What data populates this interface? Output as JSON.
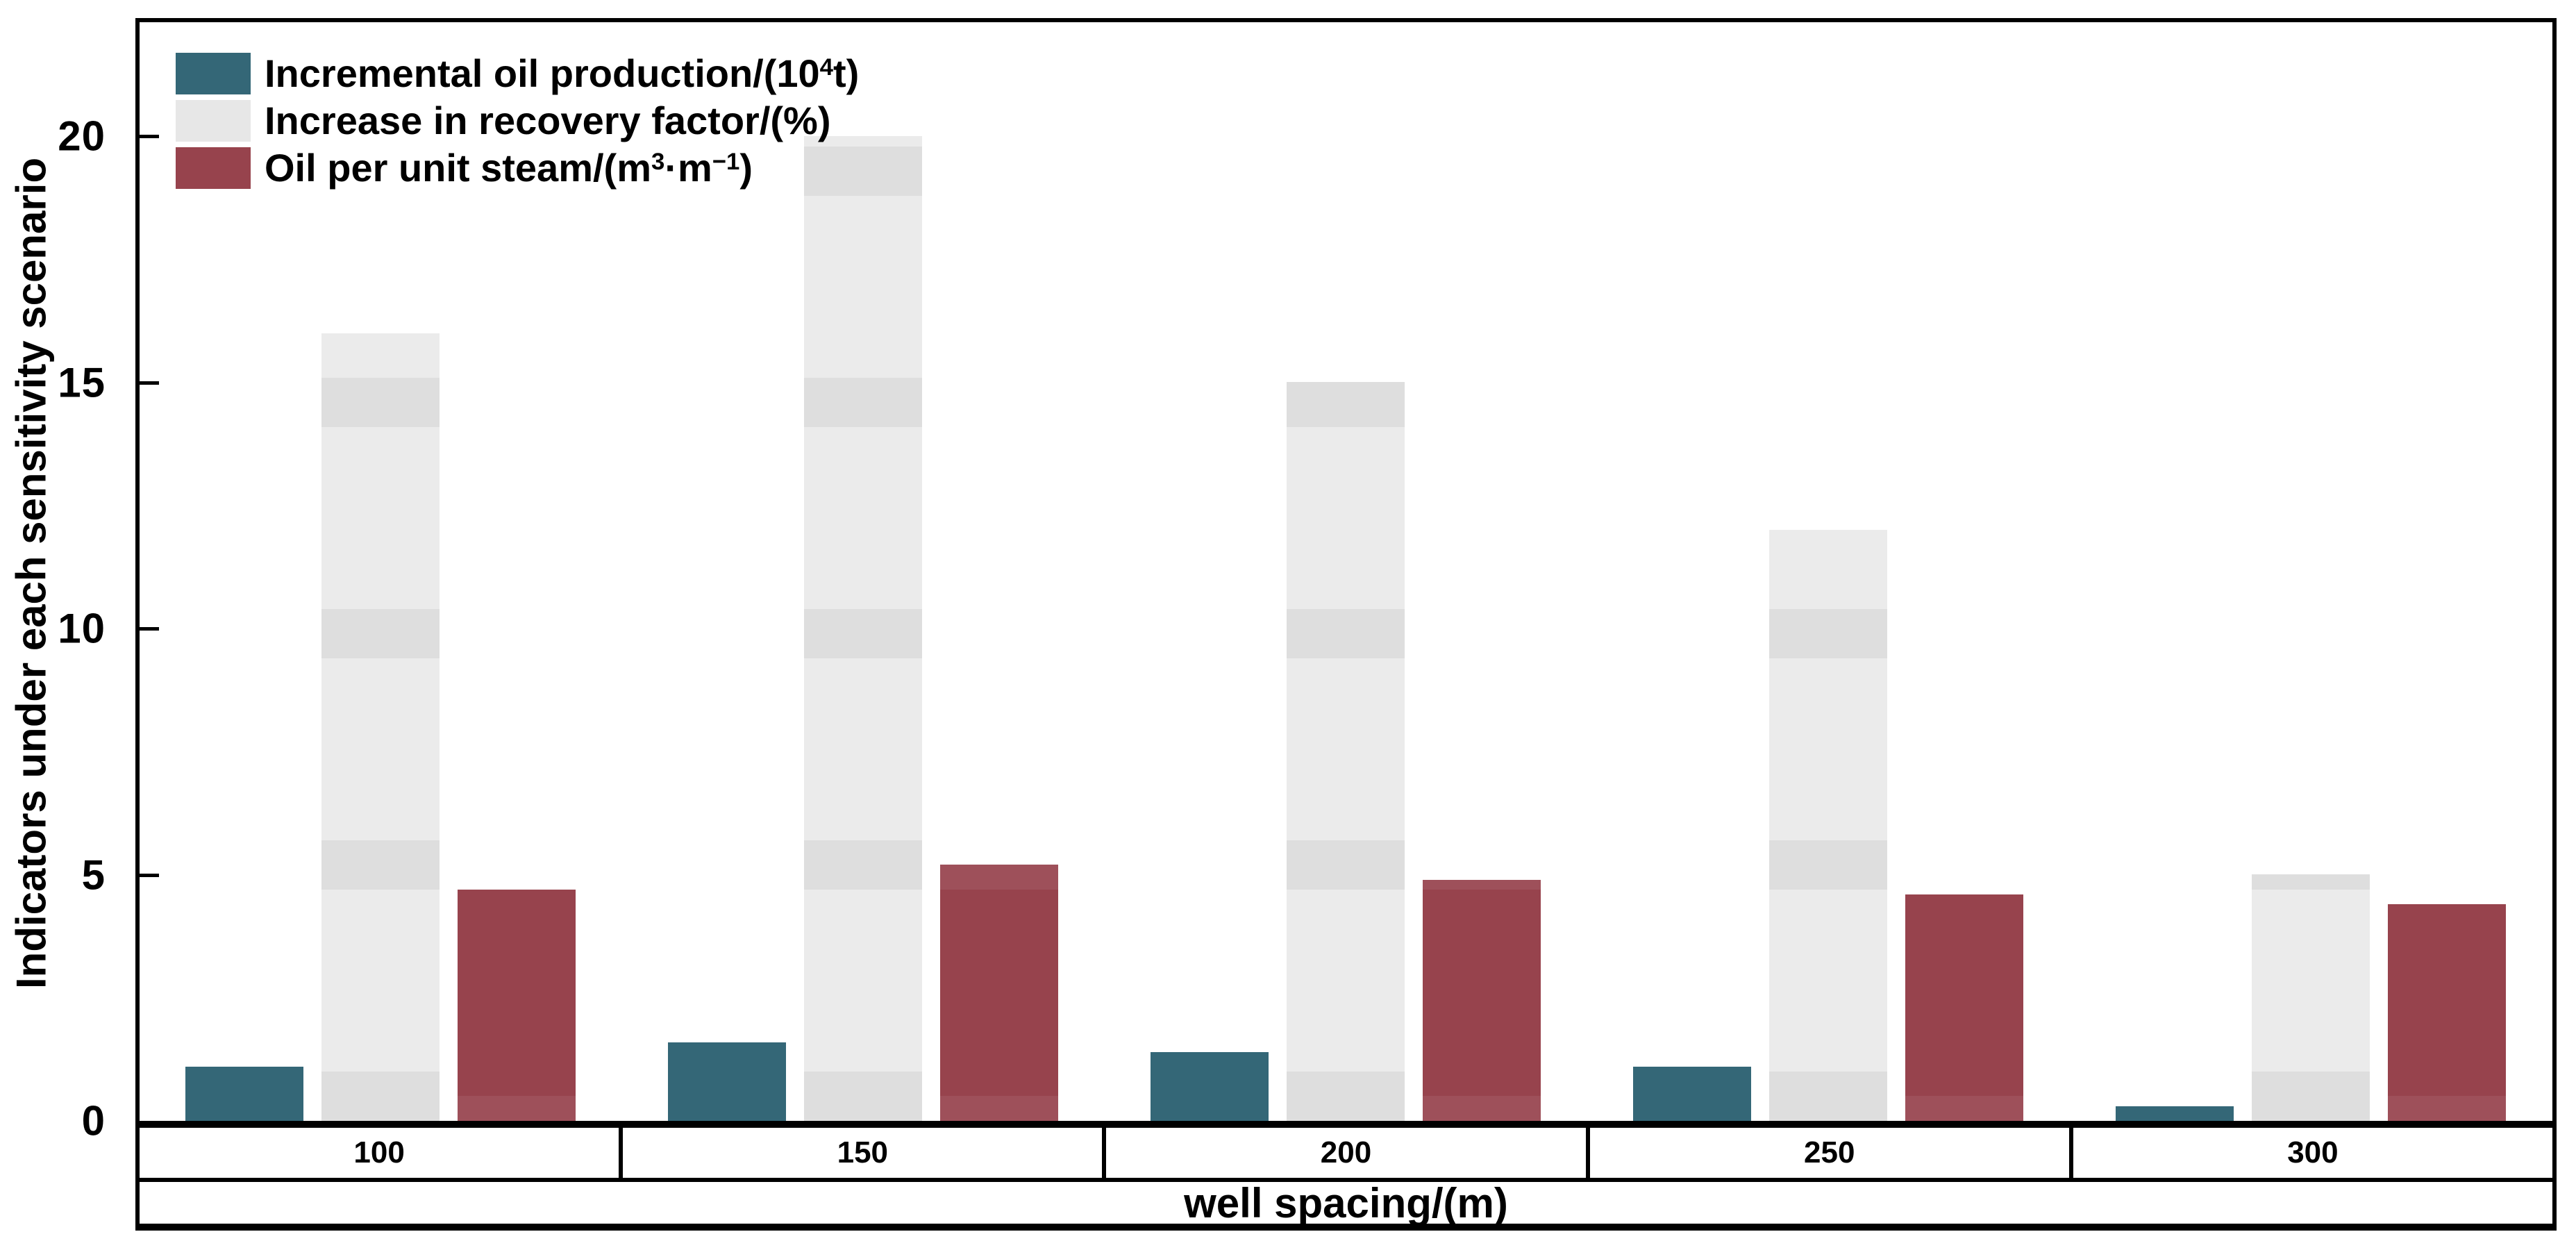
{
  "chart_data": {
    "type": "bar",
    "title": "",
    "categories": [
      "100",
      "150",
      "200",
      "250",
      "300"
    ],
    "series": [
      {
        "name": "Incremental oil production/(10⁴t)",
        "color": "#346777",
        "values": [
          1.1,
          1.6,
          1.4,
          1.1,
          0.3
        ]
      },
      {
        "name": "Increase in recovery factor/(%)",
        "color": "#E7E7E7",
        "values": [
          16.0,
          20.0,
          15.0,
          12.0,
          5.0
        ]
      },
      {
        "name": "Oil per unit steam/(m³·m⁻¹)",
        "color": "#97434D",
        "values": [
          4.7,
          5.2,
          4.9,
          4.6,
          4.4
        ]
      }
    ],
    "xlabel": "well spacing/(m)",
    "ylabel": "Indicators under each sensitivity scenario",
    "yticks": [
      0,
      5,
      10,
      15,
      20
    ],
    "ylim": [
      0,
      22.4
    ],
    "grid": false,
    "legend_position": "top-left",
    "bar_edge_color": "none",
    "background_color": "#ffffff"
  },
  "legend": {
    "items": [
      {
        "parts": [
          {
            "text": "Incremental oil production/(10",
            "sup": false
          },
          {
            "text": "4",
            "sup": true
          },
          {
            "text": "t)",
            "sup": false
          }
        ]
      },
      {
        "parts": [
          {
            "text": "Increase in recovery factor/(%)",
            "sup": false
          }
        ]
      },
      {
        "parts": [
          {
            "text": "Oil per unit steam/(m",
            "sup": false
          },
          {
            "text": "3",
            "sup": true
          },
          {
            "text": "·m",
            "sup": false
          },
          {
            "text": "−1",
            "sup": true
          },
          {
            "text": ")",
            "sup": false
          }
        ]
      }
    ]
  }
}
